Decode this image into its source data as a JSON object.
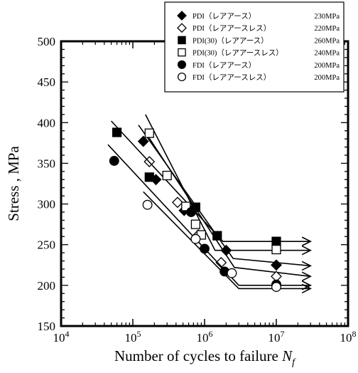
{
  "chart_data": {
    "type": "scatter",
    "xscale": "log",
    "xlim": [
      10000,
      100000000
    ],
    "ylim": [
      150,
      500
    ],
    "grid": false,
    "legend_position": "top-right",
    "xlabel": "Number of cycles to failure",
    "xlabel_symbol": "N",
    "xlabel_subscript": "f",
    "ylabel": "Stress , MPa",
    "x_ticks": [
      {
        "value": 10000,
        "base": "10",
        "exp": "4"
      },
      {
        "value": 100000,
        "base": "10",
        "exp": "5"
      },
      {
        "value": 1000000,
        "base": "10",
        "exp": "6"
      },
      {
        "value": 10000000,
        "base": "10",
        "exp": "7"
      },
      {
        "value": 100000000,
        "base": "10",
        "exp": "8"
      }
    ],
    "y_ticks": [
      "150",
      "200",
      "250",
      "300",
      "350",
      "400",
      "450",
      "500"
    ],
    "series": [
      {
        "name": "PDI（レアアース）",
        "limit": "230MPa",
        "marker": "diamond",
        "filled": true,
        "points": [
          [
            140000,
            377
          ],
          [
            210000,
            330
          ],
          [
            520000,
            292
          ],
          [
            2000000,
            243
          ]
        ],
        "runout": [
          [
            10000000,
            225
          ]
        ],
        "line": [
          [
            120000,
            397
          ],
          [
            2500000,
            233
          ],
          [
            30000000,
            224
          ]
        ]
      },
      {
        "name": "PDI（レアアースレス）",
        "limit": "220MPa",
        "marker": "diamond",
        "filled": false,
        "points": [
          [
            170000,
            352
          ],
          [
            420000,
            302
          ],
          [
            820000,
            262
          ],
          [
            1700000,
            228
          ]
        ],
        "runout": [
          [
            10000000,
            211
          ]
        ],
        "line": [
          [
            150000,
            388
          ],
          [
            2600000,
            222
          ],
          [
            30000000,
            211
          ]
        ]
      },
      {
        "name": "PDI(30)（レアアース）",
        "limit": "260MPa",
        "marker": "square",
        "filled": true,
        "points": [
          [
            60000,
            388
          ],
          [
            170000,
            333
          ],
          [
            750000,
            296
          ],
          [
            1500000,
            261
          ]
        ],
        "runout": [
          [
            10000000,
            254
          ]
        ],
        "line": [
          [
            50000,
            402
          ],
          [
            1800000,
            254
          ],
          [
            30000000,
            254
          ]
        ]
      },
      {
        "name": "PDI(30)（レアアースレス）",
        "limit": "240MPa",
        "marker": "square",
        "filled": false,
        "points": [
          [
            170000,
            387
          ],
          [
            300000,
            335
          ],
          [
            550000,
            297
          ],
          [
            750000,
            275
          ],
          [
            900000,
            262
          ]
        ],
        "runout": [
          [
            10000000,
            244
          ]
        ],
        "line": [
          [
            150000,
            410
          ],
          [
            1400000,
            243
          ],
          [
            30000000,
            243
          ]
        ]
      },
      {
        "name": "FDI（レアアース）",
        "limit": "200MPa",
        "marker": "circle",
        "filled": true,
        "points": [
          [
            55000,
            353
          ],
          [
            650000,
            290
          ],
          [
            1000000,
            245
          ],
          [
            1900000,
            217
          ]
        ],
        "runout": [
          [
            10000000,
            201
          ]
        ],
        "line": [
          [
            45000,
            373
          ],
          [
            3000000,
            200
          ],
          [
            30000000,
            200
          ]
        ]
      },
      {
        "name": "FDI（レアアースレス）",
        "limit": "200MPa",
        "marker": "circle",
        "filled": false,
        "points": [
          [
            160000,
            299
          ],
          [
            750000,
            257
          ],
          [
            2400000,
            215
          ]
        ],
        "runout": [
          [
            10000000,
            198
          ]
        ],
        "line": [
          [
            140000,
            315
          ],
          [
            3000000,
            196
          ],
          [
            30000000,
            196
          ]
        ]
      }
    ]
  }
}
